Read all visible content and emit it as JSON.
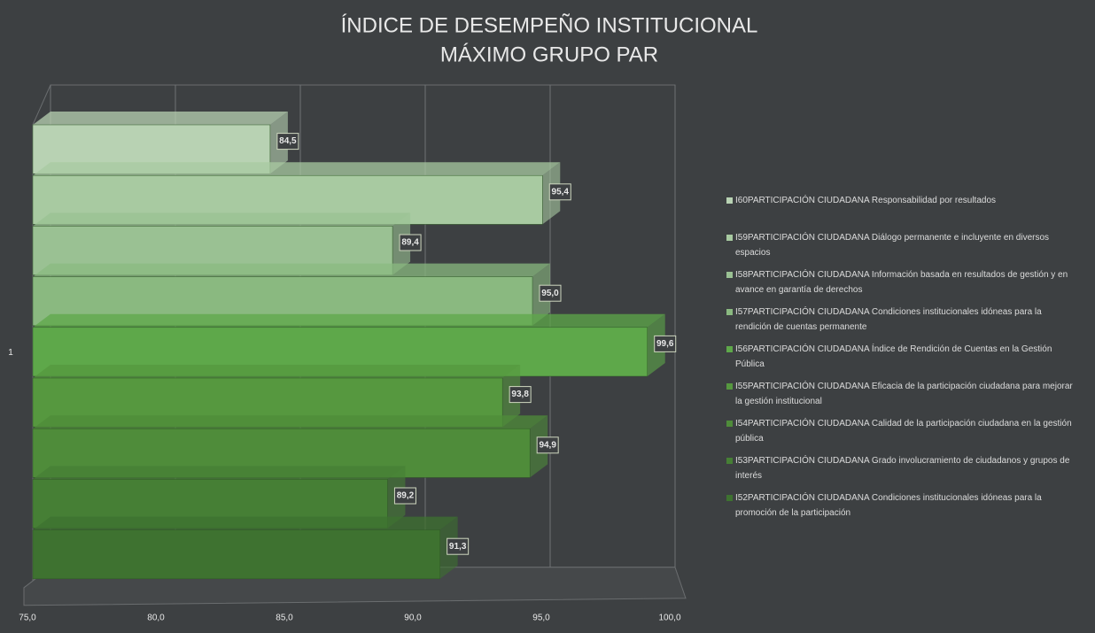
{
  "chart_data": {
    "type": "bar3d_horizontal",
    "title": "ÍNDICE DE DESEMPEÑO INSTITUCIONAL",
    "subtitle": "MÁXIMO GRUPO PAR",
    "categories": [
      "1"
    ],
    "series": [
      {
        "name": "I60PARTICIPACIÓN CIUDADANA Responsabilidad por resultados",
        "color": "#b8d2b3",
        "values": [
          84.5
        ],
        "value_labels": [
          "84,5"
        ]
      },
      {
        "name": "I59PARTICIPACIÓN CIUDADANA Diálogo permanente e incluyente en diversos espacios",
        "color": "#a8caa1",
        "values": [
          95.4
        ],
        "value_labels": [
          "95,4"
        ]
      },
      {
        "name": "I58PARTICIPACIÓN CIUDADANA Información basada en resultados de gestión y en avance en garantía de derechos",
        "color": "#9ac193",
        "values": [
          89.4
        ],
        "value_labels": [
          "89,4"
        ]
      },
      {
        "name": "I57PARTICIPACIÓN CIUDADANA Condiciones institucionales idóneas para la rendición de cuentas permanente",
        "color": "#8ab980",
        "values": [
          95.0
        ],
        "value_labels": [
          "95,0"
        ]
      },
      {
        "name": "I56PARTICIPACIÓN CIUDADANA Índice de Rendición de Cuentas en la Gestión Pública",
        "color": "#5ea84a",
        "values": [
          99.6
        ],
        "value_labels": [
          "99,6"
        ]
      },
      {
        "name": "I55PARTICIPACIÓN CIUDADANA Eficacia de la participación ciudadana para mejorar la gestión institucional",
        "color": "#56983f",
        "values": [
          93.8
        ],
        "value_labels": [
          "93,8"
        ]
      },
      {
        "name": "I54PARTICIPACIÓN CIUDADANA Calidad de la participación ciudadana en la gestión pública",
        "color": "#4f8c3a",
        "values": [
          94.9
        ],
        "value_labels": [
          "94,9"
        ]
      },
      {
        "name": "I53PARTICIPACIÓN CIUDADANA Grado involucramiento de ciudadanos y grupos de interés",
        "color": "#467f35",
        "values": [
          89.2
        ],
        "value_labels": [
          "89,2"
        ]
      },
      {
        "name": "I52PARTICIPACIÓN CIUDADANA Condiciones institucionales idóneas para la promoción de la participación",
        "color": "#3e7230",
        "values": [
          91.3
        ],
        "value_labels": [
          "91,3"
        ]
      }
    ],
    "xlim": [
      75,
      100
    ],
    "xticks": [
      {
        "value": 75,
        "label": "75,0"
      },
      {
        "value": 80,
        "label": "80,0"
      },
      {
        "value": 85,
        "label": "85,0"
      },
      {
        "value": 90,
        "label": "90,0"
      },
      {
        "value": 95,
        "label": "95,0"
      },
      {
        "value": 100,
        "label": "100,0"
      }
    ],
    "grid": true,
    "legend": "right"
  }
}
